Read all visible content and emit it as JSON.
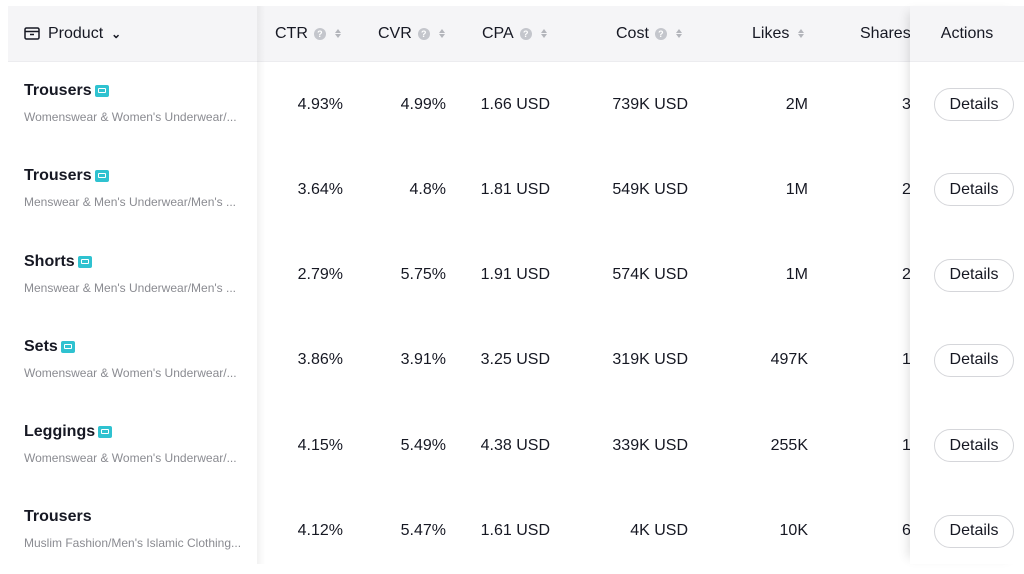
{
  "columns": {
    "product": "Product",
    "ctr": "CTR",
    "cvr": "CVR",
    "cpa": "CPA",
    "cost": "Cost",
    "likes": "Likes",
    "shares": "Shares",
    "actions": "Actions"
  },
  "icons": {
    "product": "box-icon",
    "dropdown": "chevron-down-icon",
    "info": "info-icon",
    "sort": "sort-icon",
    "tag": "product-tag-icon"
  },
  "colors": {
    "tag": "#2fc2d0",
    "header_bg": "#f5f5f7",
    "muted_text": "#8a8b91"
  },
  "rows": [
    {
      "name": "Trousers",
      "category": "Womenswear & Women's Underwear/...",
      "tag": true,
      "ctr": "4.93%",
      "cvr": "4.99%",
      "cpa": "1.66 USD",
      "cost": "739K USD",
      "likes": "2M",
      "shares": "3",
      "action": "Details"
    },
    {
      "name": "Trousers",
      "category": "Menswear & Men's Underwear/Men's ...",
      "tag": true,
      "ctr": "3.64%",
      "cvr": "4.8%",
      "cpa": "1.81 USD",
      "cost": "549K USD",
      "likes": "1M",
      "shares": "2",
      "action": "Details"
    },
    {
      "name": "Shorts",
      "category": "Menswear & Men's Underwear/Men's ...",
      "tag": true,
      "ctr": "2.79%",
      "cvr": "5.75%",
      "cpa": "1.91 USD",
      "cost": "574K USD",
      "likes": "1M",
      "shares": "2",
      "action": "Details"
    },
    {
      "name": "Sets",
      "category": "Womenswear & Women's Underwear/...",
      "tag": true,
      "ctr": "3.86%",
      "cvr": "3.91%",
      "cpa": "3.25 USD",
      "cost": "319K USD",
      "likes": "497K",
      "shares": "1",
      "action": "Details"
    },
    {
      "name": "Leggings",
      "category": "Womenswear & Women's Underwear/...",
      "tag": true,
      "ctr": "4.15%",
      "cvr": "5.49%",
      "cpa": "4.38 USD",
      "cost": "339K USD",
      "likes": "255K",
      "shares": "1",
      "action": "Details"
    },
    {
      "name": "Trousers",
      "category": "Muslim Fashion/Men's Islamic Clothing...",
      "tag": false,
      "ctr": "4.12%",
      "cvr": "5.47%",
      "cpa": "1.61 USD",
      "cost": "4K USD",
      "likes": "10K",
      "shares": "6",
      "action": "Details"
    }
  ]
}
